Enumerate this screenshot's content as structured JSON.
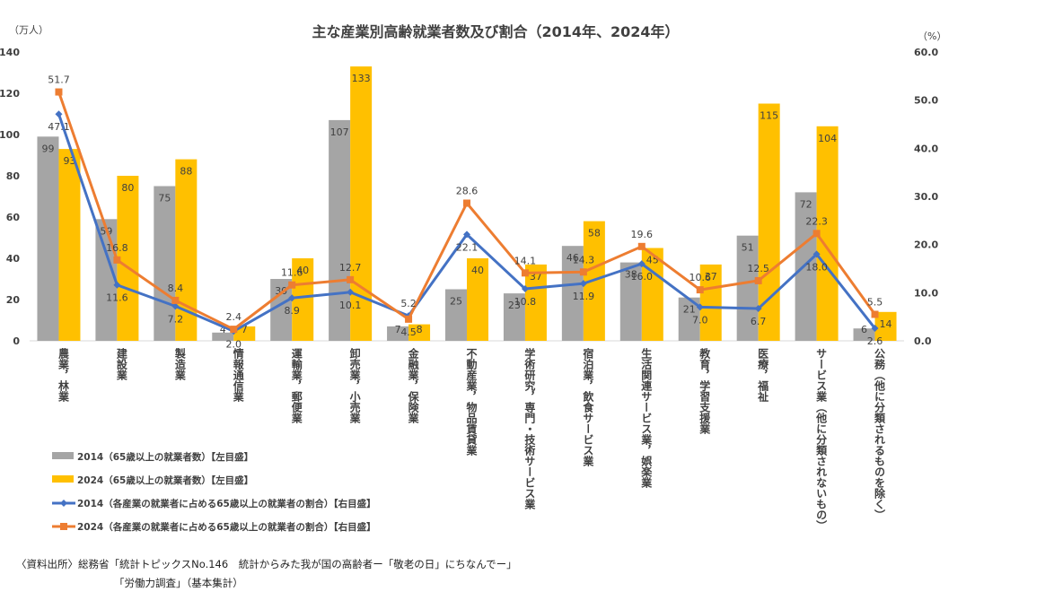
{
  "chart_data": {
    "type": "bar",
    "title": "主な産業別高齢就業者数及び割合（2014年、2024年）",
    "left_axis_unit": "（万人）",
    "right_axis_unit": "（%）",
    "ylim_left": [
      0,
      140
    ],
    "ylim_right": [
      0,
      60
    ],
    "left_ticks": [
      "0",
      "20",
      "40",
      "60",
      "80",
      "100",
      "120",
      "140"
    ],
    "right_ticks": [
      "0.0",
      "10.0",
      "20.0",
      "30.0",
      "40.0",
      "50.0",
      "60.0"
    ],
    "categories": [
      "農業，林業",
      "建設業",
      "製造業",
      "情報通信業",
      "運輸業，郵便業",
      "卸売業，小売業",
      "金融業，保険業",
      "不動産業，物品賃貸業",
      "学術研究，専門・技術サービス業",
      "宿泊業，飲食サービス業",
      "生活関連サービス業，娯楽業",
      "教育，学習支援業",
      "医療，福祉",
      "サービス業（他に分類されないもの）",
      "公務（他に分類されるものを除く）"
    ],
    "bar_series": [
      {
        "name": "2014（65歳以上の就業者数）【左目盛】",
        "color": "#A5A5A5",
        "values": [
          99,
          59,
          75,
          4,
          30,
          107,
          7,
          25,
          23,
          46,
          38,
          21,
          51,
          72,
          6
        ]
      },
      {
        "name": "2024（65歳以上の就業者数）【左目盛】",
        "color": "#FFC000",
        "values": [
          93,
          80,
          88,
          7,
          40,
          133,
          8,
          40,
          37,
          58,
          45,
          37,
          115,
          104,
          14
        ]
      }
    ],
    "line_series": [
      {
        "name": "2014（各産業の就業者に占める65歳以上の就業者の割合）【右目盛】",
        "color": "#4472C4",
        "marker": "diamond",
        "values": [
          47.1,
          11.6,
          7.2,
          2.0,
          8.9,
          10.1,
          5.2,
          22.1,
          10.8,
          11.9,
          16.0,
          7.0,
          6.7,
          18.0,
          2.6
        ]
      },
      {
        "name": "2024（各産業の就業者に占める65歳以上の就業者の割合）【右目盛】",
        "color": "#ED7D31",
        "marker": "square",
        "values": [
          51.7,
          16.8,
          8.4,
          2.4,
          11.6,
          12.7,
          4.5,
          28.6,
          14.1,
          14.3,
          19.6,
          10.6,
          12.5,
          22.3,
          5.5
        ]
      }
    ],
    "legend_position": "bottom-left",
    "grid": false
  },
  "legend": [
    "2014（65歳以上の就業者数）【左目盛】",
    "2024（65歳以上の就業者数）【左目盛】",
    "2014（各産業の就業者に占める65歳以上の就業者の割合）【右目盛】",
    "2024（各産業の就業者に占める65歳以上の就業者の割合）【右目盛】"
  ],
  "source": {
    "line1": "〈資料出所〉総務省「統計トピックスNo.146　統計からみた我が国の高齢者ー「敬老の日」にちなんでー」",
    "line2": "「労働力調査」（基本集計）"
  }
}
